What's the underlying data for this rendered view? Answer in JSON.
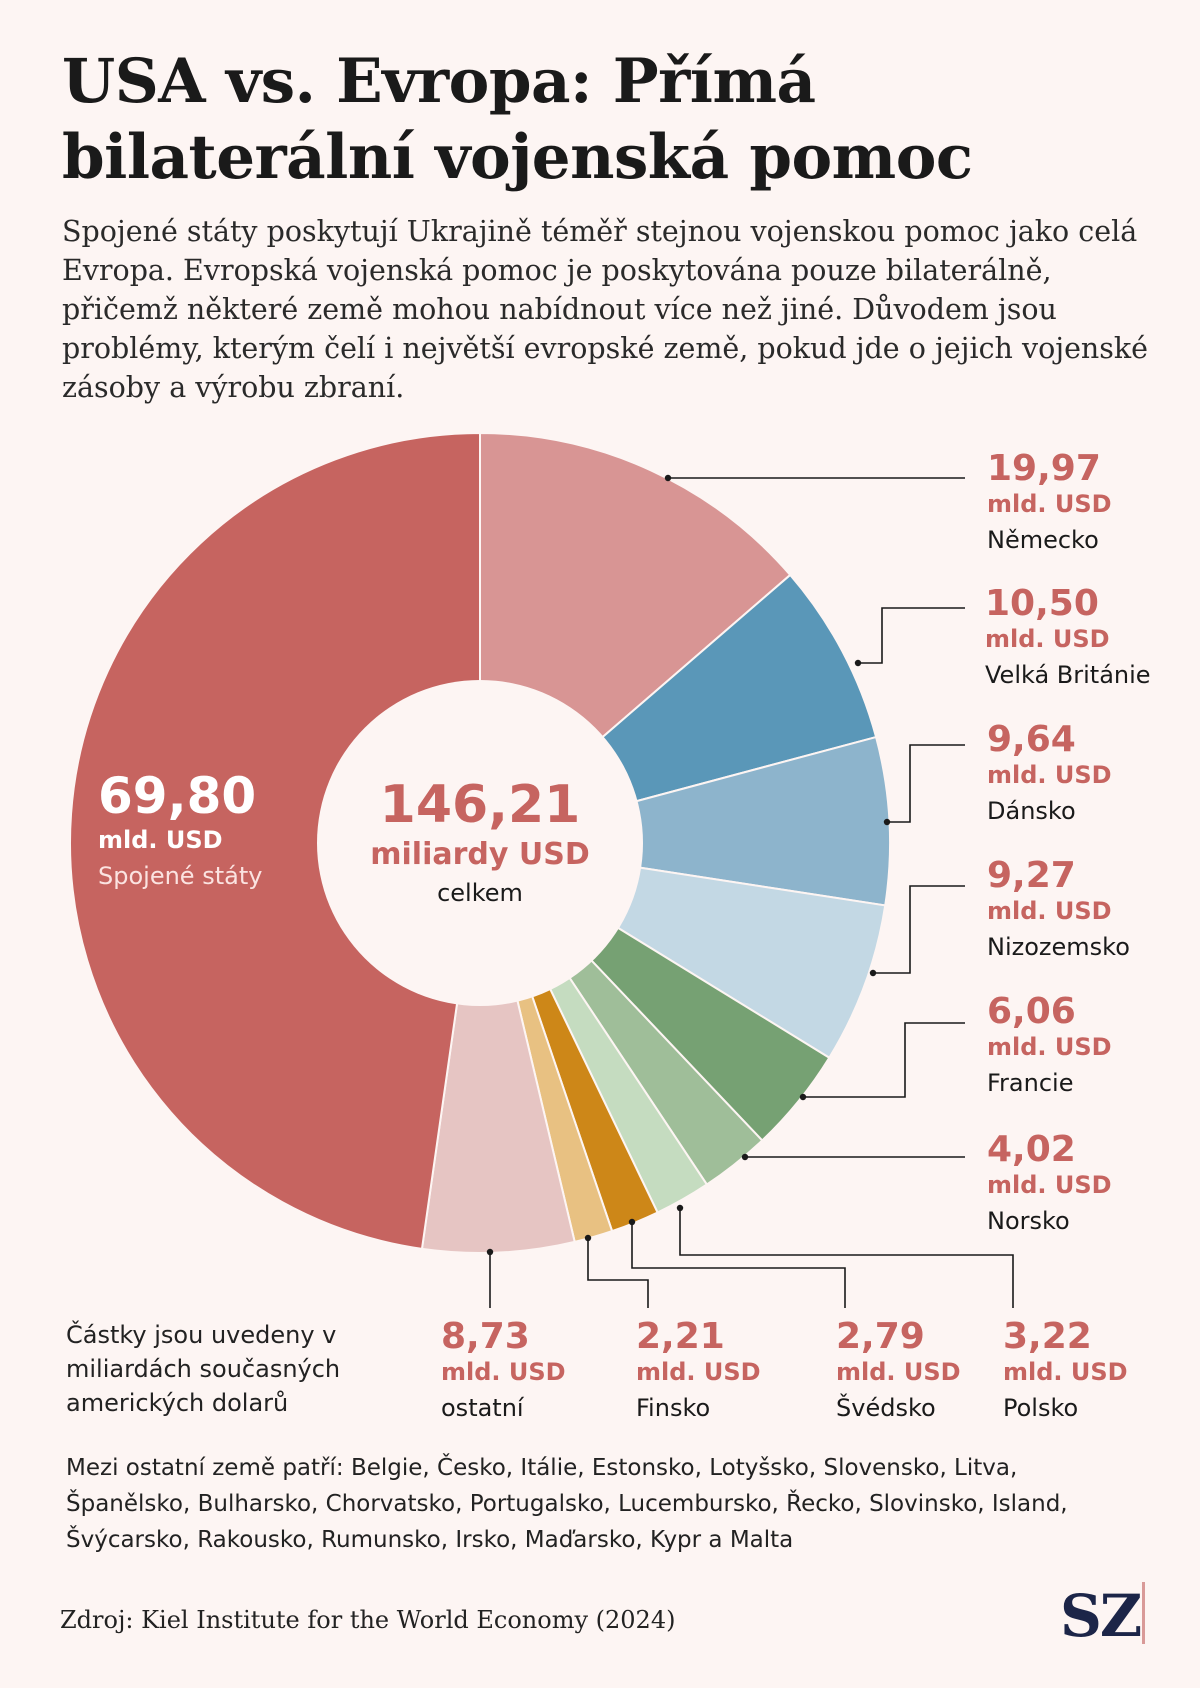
{
  "title": "USA vs. Evropa: Přímá bilaterální vojenská pomoc",
  "subtitle": "Spojené státy poskytují Ukrajině téměř stejnou vojenskou pomoc jako celá Evropa. Evropská vojenská pomoc je poskytována pouze bilaterálně, přičemž některé země mohou nabídnout více než jiné. Důvodem jsou problémy, kterým čelí i největší evropské země, pokud jde o jejich vojenské zásoby a výrobu zbraní.",
  "note": "Částky jsou uvedeny v miliardách současných amerických dolarů",
  "others_text": "Mezi ostatní země patří: Belgie, Česko, Itálie, Estonsko, Lotyšsko, Slovensko, Litva, Španělsko, Bulharsko, Chorvatsko, Portugalsko, Lucembursko, Řecko, Slovinsko, Island, Švýcarsko, Rakousko, Rumunsko, Irsko, Maďarsko, Kypr a Malta",
  "source": "Zdroj: Kiel Institute for the World Economy (2024)",
  "logo": "SZ",
  "chart_data": {
    "type": "pie",
    "center": {
      "value": "146,21",
      "unit": "miliardy USD",
      "label": "celkem"
    },
    "unit_label": "mld. USD",
    "slices": [
      {
        "name": "Německo",
        "label": "19,97",
        "value": 19.97,
        "color": "#d89594"
      },
      {
        "name": "Velká Británie",
        "label": "10,50",
        "value": 10.5,
        "color": "#5a97b8"
      },
      {
        "name": "Dánsko",
        "label": "9,64",
        "value": 9.64,
        "color": "#8db4cc"
      },
      {
        "name": "Nizozemsko",
        "label": "9,27",
        "value": 9.27,
        "color": "#c3d8e4"
      },
      {
        "name": "Francie",
        "label": "6,06",
        "value": 6.06,
        "color": "#76a173"
      },
      {
        "name": "Norsko",
        "label": "4,02",
        "value": 4.02,
        "color": "#9fbe99"
      },
      {
        "name": "Polsko",
        "label": "3,22",
        "value": 3.22,
        "color": "#c5dcc0"
      },
      {
        "name": "Švédsko",
        "label": "2,79",
        "value": 2.79,
        "color": "#cd8718"
      },
      {
        "name": "Finsko",
        "label": "2,21",
        "value": 2.21,
        "color": "#e8c182"
      },
      {
        "name": "ostatní",
        "label": "8,73",
        "value": 8.73,
        "color": "#e6c5c3"
      },
      {
        "name": "Spojené státy",
        "label": "69,80",
        "value": 69.8,
        "color": "#c66460"
      }
    ]
  }
}
